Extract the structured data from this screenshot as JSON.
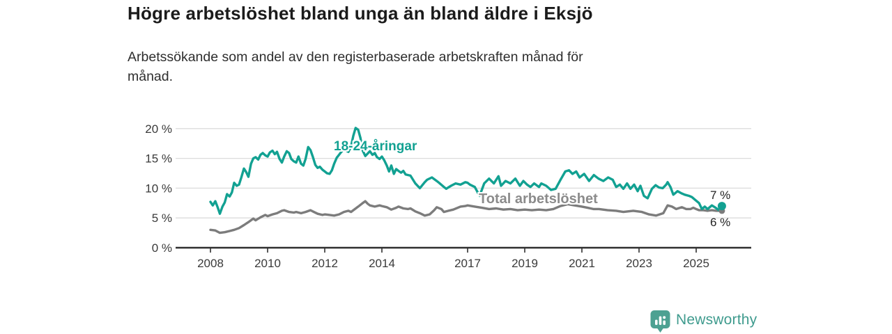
{
  "header": {
    "title": "Högre arbetslöshet bland unga än bland äldre i Eksjö",
    "subtitle_line1": "Arbetssökande som andel av den registerbaserade arbetskraften månad för",
    "subtitle_line2": "månad."
  },
  "footer": {
    "brand": "Newsworthy",
    "logo_icon": "bar-chart-map-pin-icon",
    "logo_color": "#4DA192"
  },
  "chart_data": {
    "type": "line",
    "title": "Högre arbetslöshet bland unga än bland äldre i Eksjö",
    "subtitle": "Arbetssökande som andel av den registerbaserade arbetskraften månad för månad.",
    "xlabel": "",
    "ylabel": "",
    "ylim": [
      0,
      20
    ],
    "xlim": [
      2007.8,
      2026.1
    ],
    "grid": "horizontal",
    "legend_position": "inline-labels",
    "x_axis": {
      "ticks": [
        {
          "value": 2008,
          "label": "2008"
        },
        {
          "value": 2010,
          "label": "2010"
        },
        {
          "value": 2012,
          "label": "2012"
        },
        {
          "value": 2014,
          "label": "2014"
        },
        {
          "value": 2017,
          "label": "2017"
        },
        {
          "value": 2019,
          "label": "2019"
        },
        {
          "value": 2021,
          "label": "2021"
        },
        {
          "value": 2023,
          "label": "2023"
        },
        {
          "value": 2025,
          "label": "2025"
        }
      ]
    },
    "y_axis": {
      "ticks": [
        {
          "value": 0,
          "label": "0 %"
        },
        {
          "value": 5,
          "label": "5 %"
        },
        {
          "value": 10,
          "label": "10 %"
        },
        {
          "value": 15,
          "label": "15 %"
        },
        {
          "value": 20,
          "label": "20 %"
        }
      ]
    },
    "series": [
      {
        "name": "18-24-åringar",
        "color": "#12A192",
        "end_label": "7 %",
        "end_dot": true,
        "points": [
          [
            2008.0,
            7.7
          ],
          [
            2008.08,
            7.1
          ],
          [
            2008.17,
            7.8
          ],
          [
            2008.25,
            6.8
          ],
          [
            2008.33,
            5.7
          ],
          [
            2008.42,
            6.9
          ],
          [
            2008.5,
            7.6
          ],
          [
            2008.58,
            9.0
          ],
          [
            2008.67,
            8.6
          ],
          [
            2008.75,
            9.3
          ],
          [
            2008.83,
            10.9
          ],
          [
            2008.92,
            10.4
          ],
          [
            2009.0,
            10.6
          ],
          [
            2009.08,
            11.8
          ],
          [
            2009.17,
            13.3
          ],
          [
            2009.25,
            12.7
          ],
          [
            2009.33,
            11.9
          ],
          [
            2009.42,
            14.1
          ],
          [
            2009.5,
            15.0
          ],
          [
            2009.58,
            15.2
          ],
          [
            2009.67,
            14.8
          ],
          [
            2009.75,
            15.6
          ],
          [
            2009.83,
            15.9
          ],
          [
            2009.92,
            15.5
          ],
          [
            2010.0,
            15.3
          ],
          [
            2010.08,
            16.0
          ],
          [
            2010.17,
            16.3
          ],
          [
            2010.25,
            15.7
          ],
          [
            2010.33,
            16.1
          ],
          [
            2010.42,
            14.9
          ],
          [
            2010.5,
            14.3
          ],
          [
            2010.58,
            15.3
          ],
          [
            2010.67,
            16.2
          ],
          [
            2010.75,
            15.9
          ],
          [
            2010.83,
            14.9
          ],
          [
            2010.92,
            14.5
          ],
          [
            2011.0,
            14.3
          ],
          [
            2011.08,
            15.3
          ],
          [
            2011.17,
            14.1
          ],
          [
            2011.25,
            13.8
          ],
          [
            2011.33,
            14.9
          ],
          [
            2011.42,
            16.9
          ],
          [
            2011.5,
            16.4
          ],
          [
            2011.58,
            15.3
          ],
          [
            2011.67,
            13.9
          ],
          [
            2011.75,
            13.4
          ],
          [
            2011.83,
            13.6
          ],
          [
            2011.92,
            13.1
          ],
          [
            2012.0,
            12.8
          ],
          [
            2012.08,
            12.5
          ],
          [
            2012.17,
            12.4
          ],
          [
            2012.25,
            13.0
          ],
          [
            2012.33,
            14.1
          ],
          [
            2012.42,
            15.1
          ],
          [
            2012.5,
            15.6
          ],
          [
            2012.58,
            16.1
          ],
          [
            2012.67,
            16.5
          ],
          [
            2012.75,
            16.3
          ],
          [
            2012.83,
            16.1
          ],
          [
            2012.92,
            17.0
          ],
          [
            2013.0,
            18.8
          ],
          [
            2013.08,
            20.1
          ],
          [
            2013.17,
            19.8
          ],
          [
            2013.25,
            18.4
          ],
          [
            2013.33,
            16.3
          ],
          [
            2013.42,
            15.4
          ],
          [
            2013.5,
            15.8
          ],
          [
            2013.58,
            16.2
          ],
          [
            2013.67,
            15.6
          ],
          [
            2013.75,
            15.9
          ],
          [
            2013.83,
            15.2
          ],
          [
            2013.92,
            14.9
          ],
          [
            2014.0,
            15.3
          ],
          [
            2014.08,
            14.7
          ],
          [
            2014.17,
            13.8
          ],
          [
            2014.25,
            12.8
          ],
          [
            2014.33,
            13.8
          ],
          [
            2014.42,
            12.4
          ],
          [
            2014.5,
            13.2
          ],
          [
            2014.58,
            12.9
          ],
          [
            2014.67,
            12.6
          ],
          [
            2014.75,
            12.9
          ],
          [
            2014.83,
            12.3
          ],
          [
            2014.92,
            12.2
          ],
          [
            2015.0,
            12.1
          ],
          [
            2015.17,
            10.8
          ],
          [
            2015.33,
            10.0
          ],
          [
            2015.5,
            11.0
          ],
          [
            2015.58,
            11.4
          ],
          [
            2015.75,
            11.8
          ],
          [
            2015.92,
            11.2
          ],
          [
            2016.0,
            10.9
          ],
          [
            2016.17,
            10.2
          ],
          [
            2016.25,
            9.9
          ],
          [
            2016.42,
            10.4
          ],
          [
            2016.58,
            10.8
          ],
          [
            2016.75,
            10.6
          ],
          [
            2016.92,
            11.0
          ],
          [
            2017.0,
            10.9
          ],
          [
            2017.08,
            10.6
          ],
          [
            2017.25,
            10.2
          ],
          [
            2017.42,
            8.7
          ],
          [
            2017.58,
            10.8
          ],
          [
            2017.75,
            11.6
          ],
          [
            2017.92,
            10.8
          ],
          [
            2018.08,
            12.0
          ],
          [
            2018.17,
            10.4
          ],
          [
            2018.33,
            11.2
          ],
          [
            2018.5,
            10.8
          ],
          [
            2018.67,
            11.6
          ],
          [
            2018.83,
            10.4
          ],
          [
            2018.95,
            11.2
          ],
          [
            2019.08,
            10.6
          ],
          [
            2019.2,
            10.2
          ],
          [
            2019.33,
            10.8
          ],
          [
            2019.5,
            10.2
          ],
          [
            2019.58,
            10.8
          ],
          [
            2019.75,
            10.4
          ],
          [
            2019.92,
            9.7
          ],
          [
            2020.08,
            9.9
          ],
          [
            2020.25,
            11.4
          ],
          [
            2020.42,
            12.8
          ],
          [
            2020.55,
            13.0
          ],
          [
            2020.67,
            12.4
          ],
          [
            2020.8,
            12.8
          ],
          [
            2020.92,
            11.8
          ],
          [
            2021.08,
            12.4
          ],
          [
            2021.25,
            11.2
          ],
          [
            2021.42,
            12.2
          ],
          [
            2021.58,
            11.6
          ],
          [
            2021.75,
            11.2
          ],
          [
            2021.92,
            11.8
          ],
          [
            2022.08,
            11.4
          ],
          [
            2022.2,
            10.2
          ],
          [
            2022.33,
            10.6
          ],
          [
            2022.45,
            9.9
          ],
          [
            2022.58,
            10.8
          ],
          [
            2022.7,
            9.9
          ],
          [
            2022.83,
            10.6
          ],
          [
            2022.95,
            9.5
          ],
          [
            2023.05,
            10.4
          ],
          [
            2023.17,
            8.7
          ],
          [
            2023.3,
            8.3
          ],
          [
            2023.45,
            9.9
          ],
          [
            2023.58,
            10.5
          ],
          [
            2023.7,
            10.1
          ],
          [
            2023.83,
            10.0
          ],
          [
            2023.95,
            10.6
          ],
          [
            2024.0,
            11.0
          ],
          [
            2024.1,
            10.2
          ],
          [
            2024.2,
            8.9
          ],
          [
            2024.35,
            9.5
          ],
          [
            2024.5,
            9.1
          ],
          [
            2024.6,
            8.9
          ],
          [
            2024.75,
            8.7
          ],
          [
            2024.85,
            8.5
          ],
          [
            2025.0,
            7.9
          ],
          [
            2025.1,
            7.5
          ],
          [
            2025.2,
            6.5
          ],
          [
            2025.3,
            6.9
          ],
          [
            2025.4,
            6.5
          ],
          [
            2025.55,
            7.1
          ],
          [
            2025.65,
            6.8
          ],
          [
            2025.8,
            6.3
          ],
          [
            2025.9,
            7.0
          ]
        ]
      },
      {
        "name": "Total arbetslöshet",
        "color": "#7C7C7C",
        "end_label": "6 %",
        "end_dot": true,
        "points": [
          [
            2008.0,
            3.0
          ],
          [
            2008.17,
            2.9
          ],
          [
            2008.33,
            2.5
          ],
          [
            2008.5,
            2.6
          ],
          [
            2008.67,
            2.8
          ],
          [
            2008.83,
            3.0
          ],
          [
            2009.0,
            3.3
          ],
          [
            2009.17,
            3.8
          ],
          [
            2009.33,
            4.3
          ],
          [
            2009.5,
            4.9
          ],
          [
            2009.58,
            4.6
          ],
          [
            2009.75,
            5.1
          ],
          [
            2009.92,
            5.5
          ],
          [
            2010.0,
            5.3
          ],
          [
            2010.17,
            5.6
          ],
          [
            2010.33,
            5.8
          ],
          [
            2010.5,
            6.2
          ],
          [
            2010.58,
            6.3
          ],
          [
            2010.75,
            6.0
          ],
          [
            2010.92,
            5.9
          ],
          [
            2011.0,
            6.0
          ],
          [
            2011.17,
            5.8
          ],
          [
            2011.33,
            6.0
          ],
          [
            2011.5,
            6.3
          ],
          [
            2011.58,
            6.1
          ],
          [
            2011.75,
            5.7
          ],
          [
            2011.92,
            5.5
          ],
          [
            2012.0,
            5.6
          ],
          [
            2012.17,
            5.5
          ],
          [
            2012.33,
            5.4
          ],
          [
            2012.5,
            5.6
          ],
          [
            2012.67,
            6.0
          ],
          [
            2012.83,
            6.2
          ],
          [
            2012.92,
            6.0
          ],
          [
            2013.0,
            6.3
          ],
          [
            2013.17,
            6.9
          ],
          [
            2013.33,
            7.5
          ],
          [
            2013.42,
            7.8
          ],
          [
            2013.5,
            7.4
          ],
          [
            2013.58,
            7.1
          ],
          [
            2013.75,
            6.9
          ],
          [
            2013.92,
            7.1
          ],
          [
            2014.0,
            7.0
          ],
          [
            2014.17,
            6.8
          ],
          [
            2014.33,
            6.4
          ],
          [
            2014.5,
            6.7
          ],
          [
            2014.58,
            6.9
          ],
          [
            2014.75,
            6.6
          ],
          [
            2014.92,
            6.5
          ],
          [
            2015.0,
            6.6
          ],
          [
            2015.17,
            6.1
          ],
          [
            2015.33,
            5.8
          ],
          [
            2015.5,
            5.4
          ],
          [
            2015.67,
            5.6
          ],
          [
            2015.83,
            6.3
          ],
          [
            2015.92,
            6.8
          ],
          [
            2016.08,
            6.5
          ],
          [
            2016.17,
            6.0
          ],
          [
            2016.33,
            6.2
          ],
          [
            2016.5,
            6.4
          ],
          [
            2016.75,
            6.9
          ],
          [
            2016.92,
            7.0
          ],
          [
            2017.0,
            7.1
          ],
          [
            2017.25,
            6.9
          ],
          [
            2017.5,
            6.7
          ],
          [
            2017.75,
            6.5
          ],
          [
            2018.0,
            6.6
          ],
          [
            2018.25,
            6.4
          ],
          [
            2018.5,
            6.5
          ],
          [
            2018.75,
            6.3
          ],
          [
            2019.0,
            6.4
          ],
          [
            2019.25,
            6.3
          ],
          [
            2019.5,
            6.4
          ],
          [
            2019.75,
            6.3
          ],
          [
            2020.0,
            6.5
          ],
          [
            2020.25,
            7.0
          ],
          [
            2020.5,
            7.3
          ],
          [
            2020.75,
            7.1
          ],
          [
            2021.0,
            6.9
          ],
          [
            2021.2,
            6.7
          ],
          [
            2021.4,
            6.5
          ],
          [
            2021.6,
            6.5
          ],
          [
            2021.9,
            6.3
          ],
          [
            2022.2,
            6.2
          ],
          [
            2022.45,
            6.0
          ],
          [
            2022.8,
            6.2
          ],
          [
            2023.1,
            6.0
          ],
          [
            2023.35,
            5.6
          ],
          [
            2023.6,
            5.4
          ],
          [
            2023.85,
            5.8
          ],
          [
            2024.0,
            7.1
          ],
          [
            2024.15,
            6.9
          ],
          [
            2024.3,
            6.5
          ],
          [
            2024.5,
            6.8
          ],
          [
            2024.65,
            6.5
          ],
          [
            2024.8,
            6.5
          ],
          [
            2024.9,
            6.7
          ],
          [
            2025.0,
            6.5
          ],
          [
            2025.1,
            6.3
          ],
          [
            2025.25,
            6.3
          ],
          [
            2025.4,
            6.2
          ],
          [
            2025.55,
            6.3
          ],
          [
            2025.7,
            6.2
          ],
          [
            2025.9,
            6.2
          ]
        ]
      }
    ]
  }
}
